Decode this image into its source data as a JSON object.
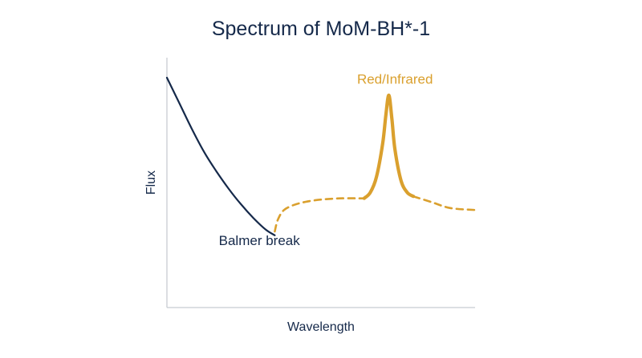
{
  "colors": {
    "text": "#15294a",
    "blue_series": "#15294a",
    "gold_series": "#daa02e",
    "axis": "#c8ccd2"
  },
  "chart_data": {
    "type": "line",
    "title": "Spectrum of MoM-BH*-1",
    "xlabel": "Wavelength",
    "ylabel": "Flux",
    "grid": false,
    "axis_ticks": false,
    "xlim": [
      0,
      100
    ],
    "ylim": [
      0,
      100
    ],
    "series": [
      {
        "style": "solid",
        "color": "#15294a",
        "x": [
          0,
          4,
          8,
          12,
          16,
          20,
          24,
          28,
          32,
          35
        ],
        "y": [
          100,
          87,
          74,
          62,
          52,
          43,
          35,
          28,
          22,
          19
        ]
      },
      {
        "style": "dashed",
        "color": "#daa02e",
        "x": [
          35,
          36,
          38,
          42,
          48,
          56,
          64
        ],
        "y": [
          21,
          27,
          32,
          35,
          37,
          38,
          38
        ]
      },
      {
        "style": "solid-thick",
        "color": "#daa02e",
        "x": [
          64,
          66,
          68,
          70,
          71,
          72,
          73,
          74,
          76,
          78,
          80
        ],
        "y": [
          38,
          41,
          49,
          66,
          80,
          91,
          79,
          63,
          47,
          41,
          39
        ]
      },
      {
        "style": "dashed",
        "color": "#daa02e",
        "x": [
          80,
          86,
          92,
          100
        ],
        "y": [
          39,
          36,
          33,
          32
        ]
      }
    ],
    "annotations": [
      {
        "text": "Balmer break",
        "x": 30,
        "y": 14,
        "color": "#15294a"
      },
      {
        "text": "Red/Infrared",
        "x": 74,
        "y": 97,
        "color": "#daa02e"
      }
    ]
  }
}
